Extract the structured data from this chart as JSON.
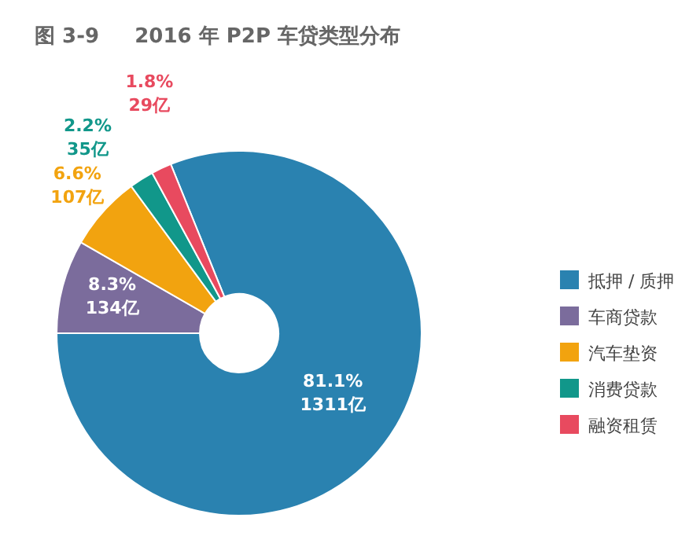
{
  "chart_data": {
    "type": "donut",
    "title": "图 3-9     2016 年 P2P 车贷类型分布",
    "categories": [
      "抵押 / 质押",
      "车商贷款",
      "汽车垫资",
      "消费贷款",
      "融资租赁"
    ],
    "values": [
      1311,
      134,
      107,
      35,
      29
    ],
    "colors": [
      "#2a82b0",
      "#7b6c9c",
      "#f2a30f",
      "#11978a",
      "#e84a5f"
    ],
    "value_labels": [
      "81.1%\n1311亿",
      "8.3%\n134亿",
      "6.6%\n107亿",
      "2.2%\n35亿",
      "1.8%\n29亿"
    ],
    "legend": "right"
  }
}
